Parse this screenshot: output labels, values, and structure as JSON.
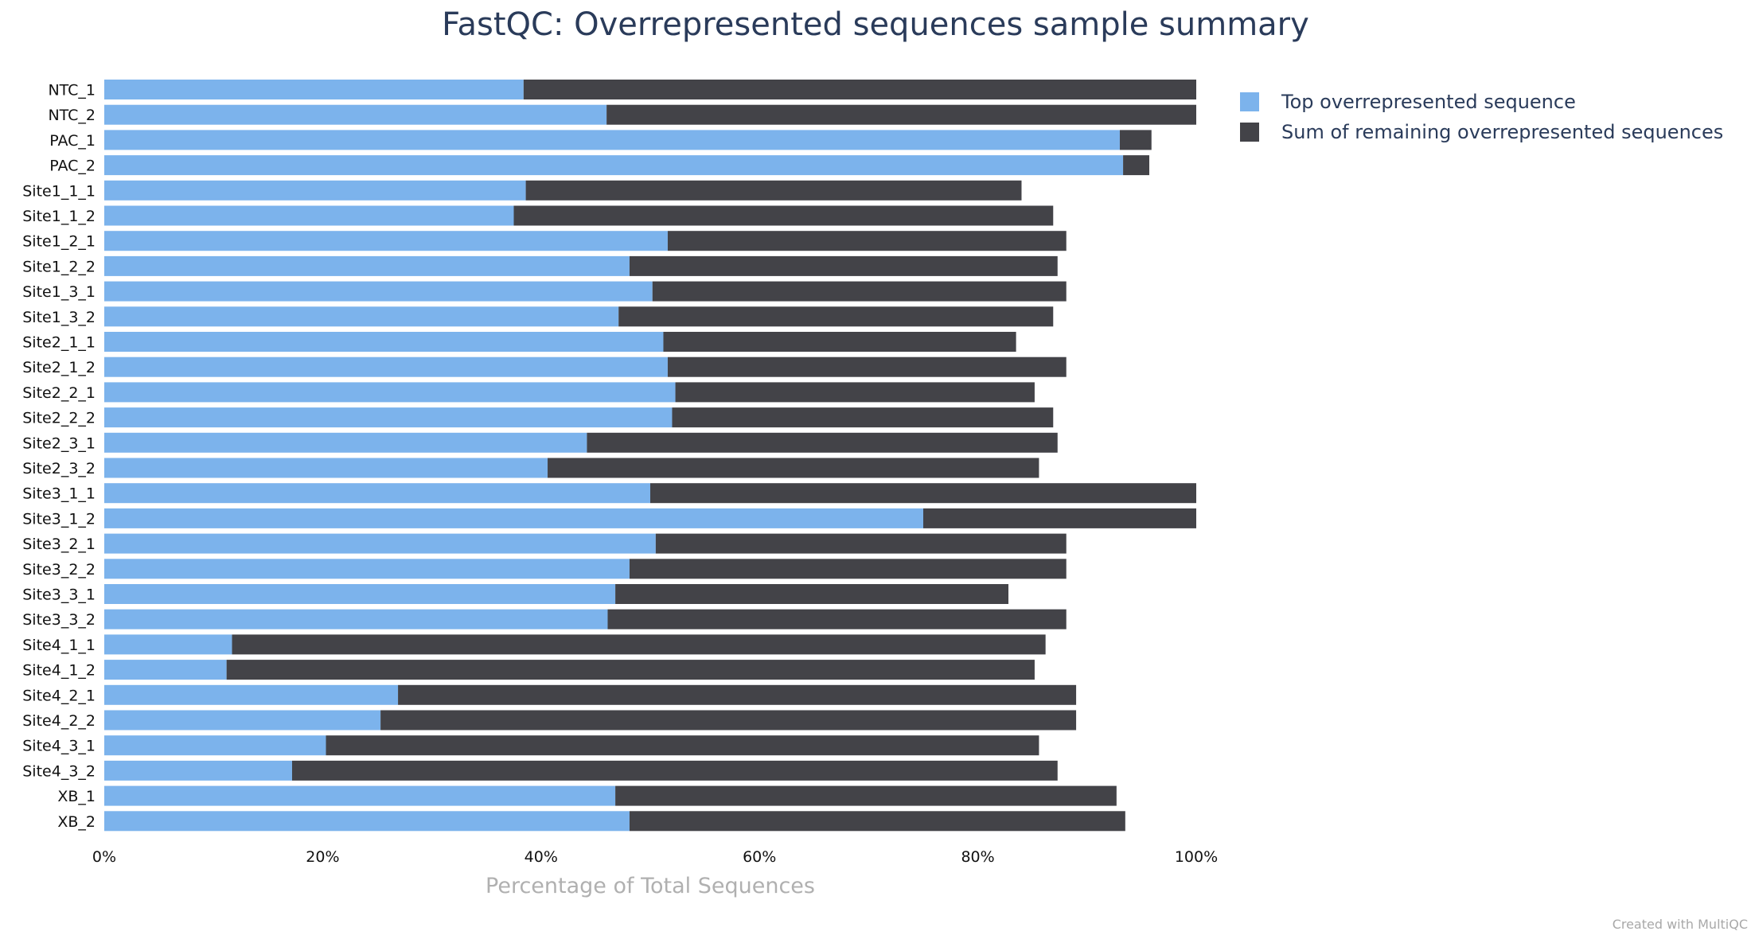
{
  "title": "FastQC: Overrepresented sequences sample summary",
  "credit": "Created with MultiQC",
  "colors": {
    "top": "#7cb3ec",
    "remaining": "#434348"
  },
  "chart_data": {
    "type": "bar",
    "orientation": "horizontal",
    "stacked": true,
    "title": "FastQC: Overrepresented sequences sample summary",
    "xlabel": "Percentage of Total Sequences",
    "ylabel": "",
    "xlim": [
      0,
      100
    ],
    "x_ticks": [
      "0%",
      "20%",
      "40%",
      "60%",
      "80%",
      "100%"
    ],
    "legend_position": "top-right",
    "grid": false,
    "categories": [
      "NTC_1",
      "NTC_2",
      "PAC_1",
      "PAC_2",
      "Site1_1_1",
      "Site1_1_2",
      "Site1_2_1",
      "Site1_2_2",
      "Site1_3_1",
      "Site1_3_2",
      "Site2_1_1",
      "Site2_1_2",
      "Site2_2_1",
      "Site2_2_2",
      "Site2_3_1",
      "Site2_3_2",
      "Site3_1_1",
      "Site3_1_2",
      "Site3_2_1",
      "Site3_2_2",
      "Site3_3_1",
      "Site3_3_2",
      "Site4_1_1",
      "Site4_1_2",
      "Site4_2_1",
      "Site4_2_2",
      "Site4_3_1",
      "Site4_3_2",
      "XB_1",
      "XB_2"
    ],
    "series": [
      {
        "name": "Top overrepresented sequence",
        "color": "#7cb3ec",
        "values": [
          38.4,
          46.0,
          93.0,
          93.3,
          38.6,
          37.5,
          51.6,
          48.1,
          50.2,
          47.1,
          51.2,
          51.6,
          52.3,
          52.0,
          44.2,
          40.6,
          50.0,
          75.0,
          50.5,
          48.1,
          46.8,
          46.1,
          11.7,
          11.2,
          26.9,
          25.3,
          20.3,
          17.2,
          46.8,
          48.1
        ]
      },
      {
        "name": "Sum of remaining overrepresented sequences",
        "color": "#434348",
        "values": [
          61.6,
          54.0,
          2.9,
          2.4,
          45.4,
          49.4,
          36.5,
          39.2,
          37.9,
          39.8,
          32.3,
          36.5,
          32.9,
          34.9,
          43.1,
          45.0,
          50.0,
          25.0,
          37.6,
          40.0,
          36.0,
          42.0,
          74.5,
          74.0,
          62.1,
          63.7,
          65.3,
          70.1,
          45.9,
          45.4
        ]
      }
    ]
  }
}
